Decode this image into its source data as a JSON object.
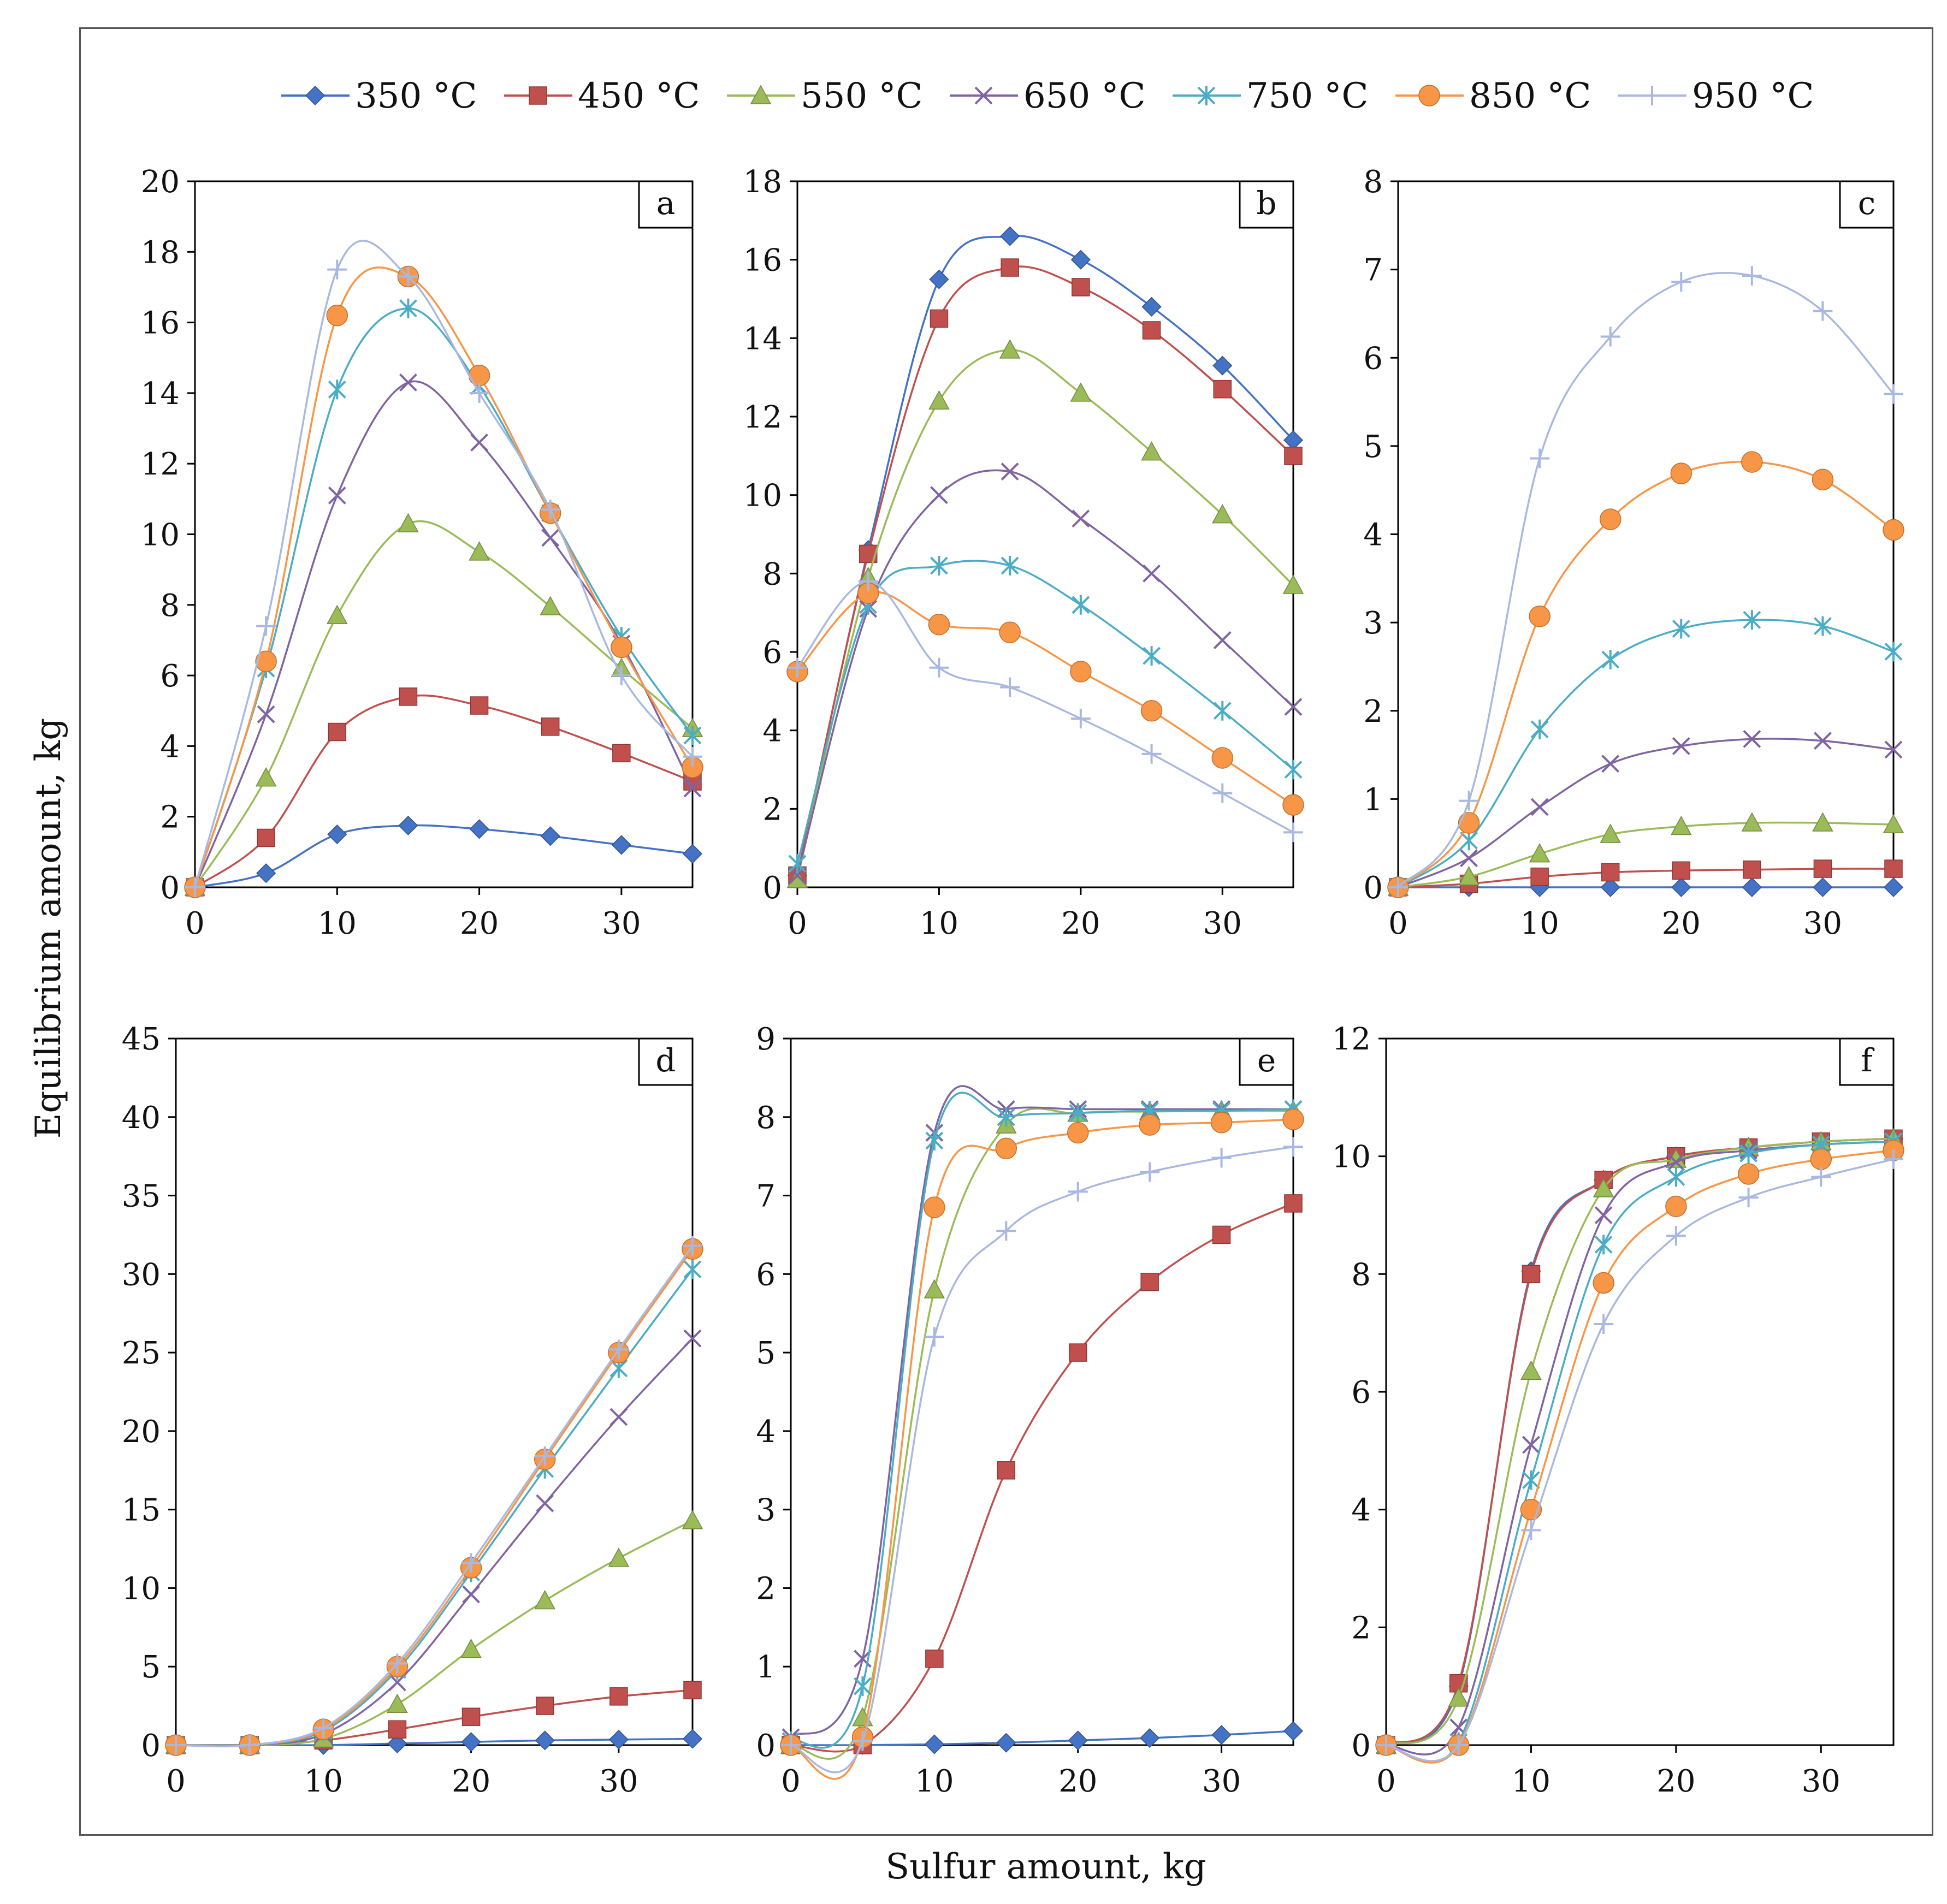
{
  "figure": {
    "xlabel": "Sulfur amount, kg",
    "ylabel": "Equilibrium amount, kg"
  },
  "legend": [
    {
      "label": "350 °C",
      "color": "#4472C4",
      "marker": "diamond"
    },
    {
      "label": "450 °C",
      "color": "#C0504D",
      "marker": "square"
    },
    {
      "label": "550 °C",
      "color": "#9BBB59",
      "marker": "triangle"
    },
    {
      "label": "650 °C",
      "color": "#8064A2",
      "marker": "x"
    },
    {
      "label": "750 °C",
      "color": "#4BACC6",
      "marker": "star"
    },
    {
      "label": "850 °C",
      "color": "#F79646",
      "marker": "circle"
    },
    {
      "label": "950 °C",
      "color": "#A9B8E0",
      "marker": "plus"
    }
  ],
  "chart_data": [
    {
      "type": "line",
      "panel": "a",
      "x": [
        0,
        5,
        10,
        15,
        20,
        25,
        30,
        35
      ],
      "xticks": [
        0,
        10,
        20,
        30
      ],
      "xlim": [
        0,
        35
      ],
      "ylim": [
        0,
        20
      ],
      "yticks": [
        0,
        2,
        4,
        6,
        8,
        10,
        12,
        14,
        16,
        18,
        20
      ],
      "series": [
        {
          "name": "350 °C",
          "values": [
            0,
            0.4,
            1.5,
            1.75,
            1.65,
            1.45,
            1.2,
            0.95
          ]
        },
        {
          "name": "450 °C",
          "values": [
            0,
            1.4,
            4.4,
            5.4,
            5.15,
            4.55,
            3.8,
            3.0
          ]
        },
        {
          "name": "550 °C",
          "values": [
            0,
            3.1,
            7.7,
            10.3,
            9.5,
            7.95,
            6.2,
            4.5
          ]
        },
        {
          "name": "650 °C",
          "values": [
            0,
            4.9,
            11.1,
            14.3,
            12.6,
            9.9,
            6.9,
            2.8
          ]
        },
        {
          "name": "750 °C",
          "values": [
            0,
            6.2,
            14.1,
            16.4,
            14.2,
            10.6,
            7.1,
            4.3
          ]
        },
        {
          "name": "850 °C",
          "values": [
            0,
            6.4,
            16.2,
            17.3,
            14.5,
            10.6,
            6.8,
            3.4
          ]
        },
        {
          "name": "950 °C",
          "values": [
            0,
            7.4,
            17.5,
            17.3,
            14.0,
            10.7,
            6.0,
            3.7
          ]
        }
      ]
    },
    {
      "type": "line",
      "panel": "b",
      "x": [
        0,
        5,
        10,
        15,
        20,
        25,
        30,
        35
      ],
      "xticks": [
        0,
        10,
        20,
        30
      ],
      "xlim": [
        0,
        35
      ],
      "ylim": [
        0,
        18
      ],
      "yticks": [
        0,
        2,
        4,
        6,
        8,
        10,
        12,
        14,
        16,
        18
      ],
      "series": [
        {
          "name": "350 °C",
          "values": [
            0.3,
            8.6,
            15.5,
            16.6,
            16.0,
            14.8,
            13.3,
            11.4
          ]
        },
        {
          "name": "450 °C",
          "values": [
            0.3,
            8.5,
            14.5,
            15.8,
            15.3,
            14.2,
            12.7,
            11.0
          ]
        },
        {
          "name": "550 °C",
          "values": [
            0.2,
            7.9,
            12.4,
            13.7,
            12.6,
            11.1,
            9.5,
            7.7
          ]
        },
        {
          "name": "650 °C",
          "values": [
            0.3,
            7.1,
            10.0,
            10.6,
            9.4,
            8.0,
            6.3,
            4.6
          ]
        },
        {
          "name": "750 °C",
          "values": [
            0.6,
            7.2,
            8.2,
            8.2,
            7.2,
            5.9,
            4.5,
            3.0
          ]
        },
        {
          "name": "850 °C",
          "values": [
            5.5,
            7.5,
            6.7,
            6.5,
            5.5,
            4.5,
            3.3,
            2.1
          ]
        },
        {
          "name": "950 °C",
          "values": [
            5.6,
            7.8,
            5.6,
            5.1,
            4.3,
            3.4,
            2.4,
            1.4
          ]
        }
      ]
    },
    {
      "type": "line",
      "panel": "c",
      "x": [
        0,
        5,
        10,
        15,
        20,
        25,
        30,
        35
      ],
      "xticks": [
        0,
        10,
        20,
        30
      ],
      "xlim": [
        0,
        35
      ],
      "ylim": [
        0,
        8
      ],
      "yticks": [
        0,
        1,
        2,
        3,
        4,
        5,
        6,
        7,
        8
      ],
      "series": [
        {
          "name": "350 °C",
          "values": [
            0,
            0,
            0,
            0,
            0,
            0,
            0,
            0
          ]
        },
        {
          "name": "450 °C",
          "values": [
            0,
            0.04,
            0.12,
            0.17,
            0.19,
            0.2,
            0.21,
            0.21
          ]
        },
        {
          "name": "550 °C",
          "values": [
            0,
            0.12,
            0.38,
            0.6,
            0.69,
            0.73,
            0.73,
            0.71
          ]
        },
        {
          "name": "650 °C",
          "values": [
            0,
            0.33,
            0.91,
            1.4,
            1.6,
            1.68,
            1.66,
            1.56
          ]
        },
        {
          "name": "750 °C",
          "values": [
            0,
            0.53,
            1.79,
            2.58,
            2.93,
            3.03,
            2.96,
            2.67
          ]
        },
        {
          "name": "850 °C",
          "values": [
            0,
            0.73,
            3.07,
            4.17,
            4.69,
            4.82,
            4.62,
            4.05
          ]
        },
        {
          "name": "950 °C",
          "values": [
            0,
            0.98,
            4.86,
            6.24,
            6.86,
            6.93,
            6.53,
            5.59
          ]
        }
      ]
    },
    {
      "type": "line",
      "panel": "d",
      "x": [
        0,
        5,
        10,
        15,
        20,
        25,
        30,
        35
      ],
      "xticks": [
        0,
        10,
        20,
        30
      ],
      "xlim": [
        0,
        35
      ],
      "ylim": [
        0,
        45
      ],
      "yticks": [
        0,
        5,
        10,
        15,
        20,
        25,
        30,
        35,
        40,
        45
      ],
      "series": [
        {
          "name": "350 °C",
          "values": [
            0,
            0,
            0,
            0.1,
            0.2,
            0.3,
            0.35,
            0.4
          ]
        },
        {
          "name": "450 °C",
          "values": [
            0,
            0,
            0.3,
            1.0,
            1.8,
            2.5,
            3.1,
            3.5
          ]
        },
        {
          "name": "550 °C",
          "values": [
            0,
            0,
            0.4,
            2.6,
            6.1,
            9.2,
            11.9,
            14.3
          ]
        },
        {
          "name": "650 °C",
          "values": [
            0,
            0,
            0.7,
            4.0,
            9.6,
            15.4,
            20.9,
            25.9
          ]
        },
        {
          "name": "750 °C",
          "values": [
            0,
            0,
            0.9,
            4.8,
            11.0,
            17.6,
            24.0,
            30.3
          ]
        },
        {
          "name": "850 °C",
          "values": [
            0,
            0,
            1.0,
            5.0,
            11.3,
            18.2,
            25.0,
            31.6
          ]
        },
        {
          "name": "950 °C",
          "values": [
            0,
            0,
            1.1,
            5.2,
            11.6,
            18.4,
            25.2,
            31.8
          ]
        }
      ]
    },
    {
      "type": "line",
      "panel": "e",
      "x": [
        0,
        5,
        10,
        15,
        20,
        25,
        30,
        35
      ],
      "xticks": [
        0,
        10,
        20,
        30
      ],
      "xlim": [
        0,
        35
      ],
      "ylim": [
        0,
        9
      ],
      "yticks": [
        0,
        1,
        2,
        3,
        4,
        5,
        6,
        7,
        8,
        9
      ],
      "series": [
        {
          "name": "350 °C",
          "values": [
            0,
            0,
            0.01,
            0.03,
            0.06,
            0.09,
            0.13,
            0.18
          ]
        },
        {
          "name": "450 °C",
          "values": [
            0,
            0,
            1.1,
            3.5,
            5.0,
            5.9,
            6.5,
            6.9
          ]
        },
        {
          "name": "550 °C",
          "values": [
            0,
            0.35,
            5.8,
            7.9,
            8.05,
            8.07,
            8.08,
            8.08
          ]
        },
        {
          "name": "650 °C",
          "values": [
            0.1,
            1.1,
            7.8,
            8.1,
            8.1,
            8.1,
            8.1,
            8.1
          ]
        },
        {
          "name": "750 °C",
          "values": [
            0.05,
            0.75,
            7.7,
            8.0,
            8.05,
            8.08,
            8.08,
            8.1
          ]
        },
        {
          "name": "850 °C",
          "values": [
            0,
            0.1,
            6.85,
            7.6,
            7.8,
            7.9,
            7.93,
            7.97
          ]
        },
        {
          "name": "950 °C",
          "values": [
            0,
            0.05,
            5.2,
            6.55,
            7.05,
            7.3,
            7.48,
            7.62
          ]
        }
      ]
    },
    {
      "type": "line",
      "panel": "f",
      "x": [
        0,
        5,
        10,
        15,
        20,
        25,
        30,
        35
      ],
      "xticks": [
        0,
        10,
        20,
        30
      ],
      "xlim": [
        0,
        35
      ],
      "ylim": [
        0,
        12
      ],
      "yticks": [
        0,
        2,
        4,
        6,
        8,
        10,
        12
      ],
      "series": [
        {
          "name": "350 °C",
          "values": [
            0,
            1.0,
            8.05,
            9.6,
            10.0,
            10.15,
            10.25,
            10.3
          ]
        },
        {
          "name": "450 °C",
          "values": [
            0,
            1.05,
            8.0,
            9.6,
            10.0,
            10.15,
            10.25,
            10.3
          ]
        },
        {
          "name": "550 °C",
          "values": [
            0,
            0.8,
            6.35,
            9.45,
            9.95,
            10.15,
            10.25,
            10.3
          ]
        },
        {
          "name": "650 °C",
          "values": [
            0,
            0.3,
            5.1,
            9.0,
            9.9,
            10.1,
            10.2,
            10.25
          ]
        },
        {
          "name": "750 °C",
          "values": [
            0,
            0.05,
            4.5,
            8.5,
            9.65,
            10.05,
            10.2,
            10.25
          ]
        },
        {
          "name": "850 °C",
          "values": [
            0,
            0,
            4.0,
            7.85,
            9.15,
            9.7,
            9.95,
            10.1
          ]
        },
        {
          "name": "950 °C",
          "values": [
            0,
            0,
            3.65,
            7.15,
            8.65,
            9.3,
            9.65,
            9.95
          ]
        }
      ]
    }
  ]
}
